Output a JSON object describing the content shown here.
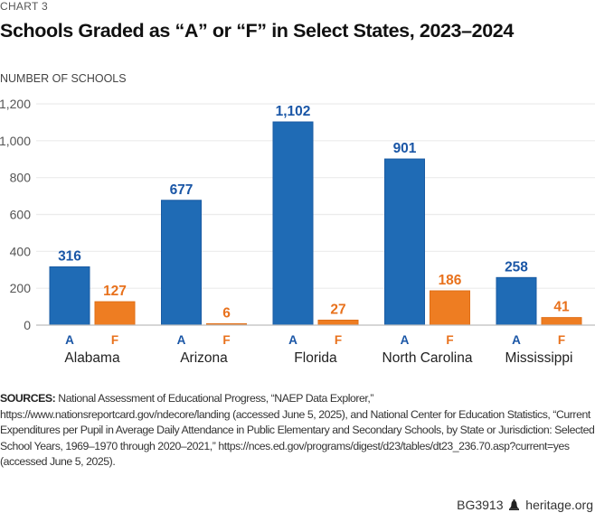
{
  "kicker": "CHART 3",
  "chart_data": {
    "type": "bar",
    "title": "Schools Graded as “A” or “F” in Select States, 2023–2024",
    "ylabel": "NUMBER OF SCHOOLS",
    "xlabel": "",
    "categories": [
      "Alabama",
      "Arizona",
      "Florida",
      "North Carolina",
      "Mississippi"
    ],
    "series": [
      {
        "name": "A",
        "color": "#1f6bb5",
        "label_color": "#1a56a6",
        "values": [
          316,
          677,
          1102,
          901,
          258
        ],
        "labels": [
          "316",
          "677",
          "1,102",
          "901",
          "258"
        ]
      },
      {
        "name": "F",
        "color": "#ee7d22",
        "label_color": "#e8711c",
        "values": [
          127,
          6,
          27,
          186,
          41
        ],
        "labels": [
          "127",
          "6",
          "27",
          "186",
          "41"
        ]
      }
    ],
    "ylim": [
      0,
      1200
    ],
    "yticks": [
      0,
      200,
      400,
      600,
      800,
      1000,
      1200
    ],
    "ytick_labels": [
      "0",
      "200",
      "400",
      "600",
      "800",
      "1,000",
      "1,200"
    ],
    "grid": true,
    "legend": "none (series labels under each bar)"
  },
  "sources": {
    "label": "SOURCES:",
    "text": "National Assessment of Educational Progress, “NAEP Data Explorer,” https://www.nationsreportcard.gov/ndecore/landing (accessed June 5, 2025), and National Center for Education Statistics, “Current Expenditures per Pupil in Average Daily Attendance in Public Elementary and Secondary Schools, by State or Jurisdiction: Selected School Years, 1969–1970 through 2020–2021,” https://nces.ed.gov/programs/digest/d23/tables/dt23_236.70.asp?current=yes (accessed June 5, 2025)."
  },
  "footer": {
    "code": "BG3913",
    "icon": "liberty-bell-icon",
    "site": "heritage.org"
  }
}
